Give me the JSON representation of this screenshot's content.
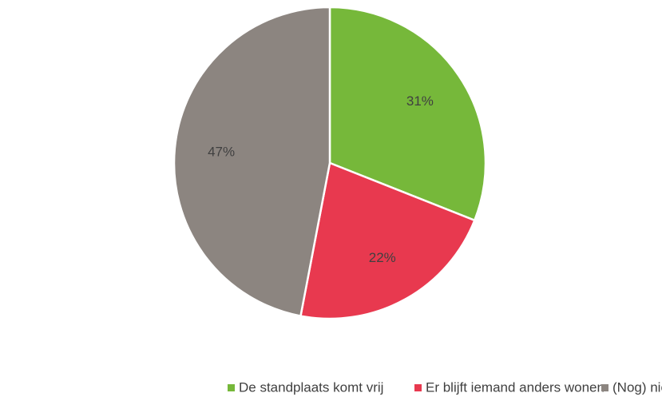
{
  "chart_data": {
    "type": "pie",
    "categories": [
      "De standplaats komt vrij",
      "Er blijft iemand anders wonen",
      "(Nog) niet bekend"
    ],
    "values": [
      31,
      22,
      47
    ],
    "value_labels": [
      "31%",
      "22%",
      "47%"
    ],
    "colors": [
      "#76b83a",
      "#e8394f",
      "#8c8580"
    ],
    "legend": "bottom"
  }
}
